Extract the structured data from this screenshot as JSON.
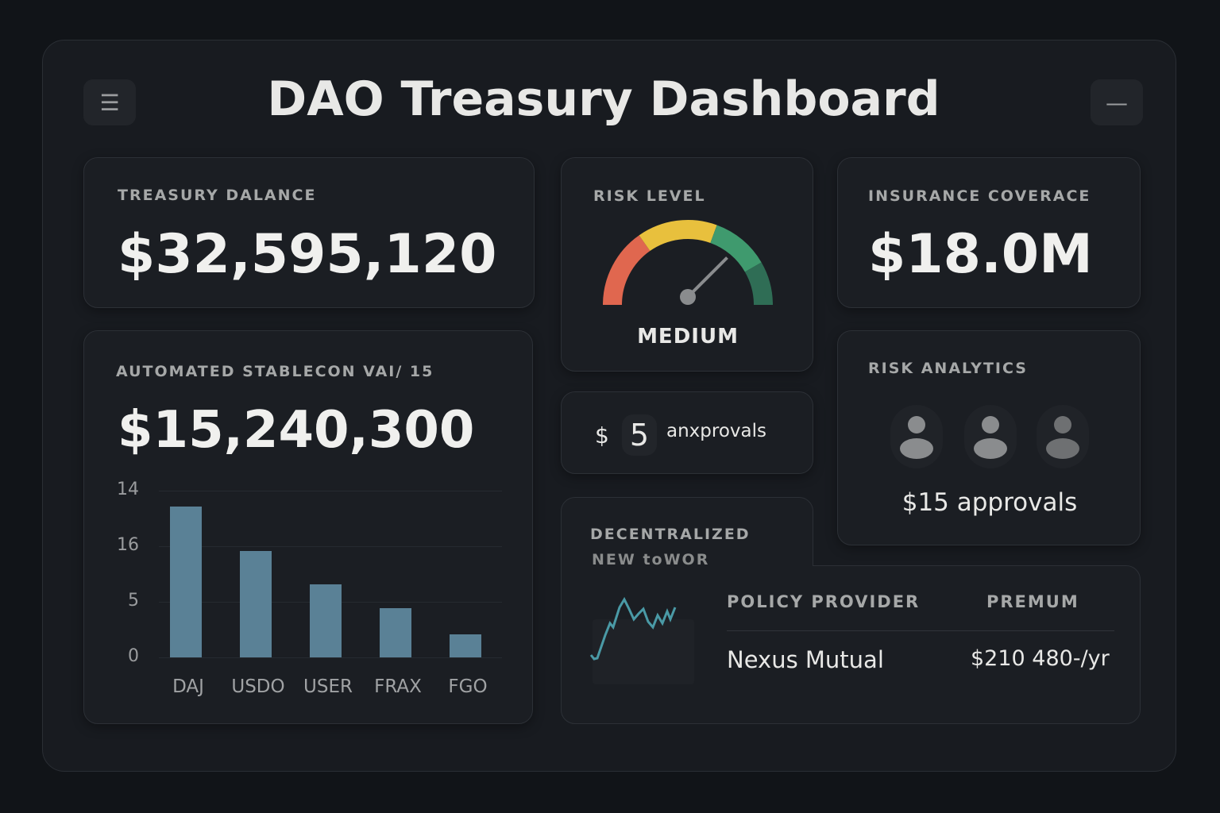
{
  "header": {
    "title": "DAO Treasury Dashboard",
    "menu_icon": "hamburger-menu-icon",
    "minimize_icon": "minimize-icon"
  },
  "treasury": {
    "label": "TREASURY DALANCE",
    "value": "$32,595,120"
  },
  "risk_level": {
    "label": "RISK LEVEL",
    "value": "MEDIUM",
    "gauge_level": 0.8,
    "colors": [
      "#e0674f",
      "#e8c03d",
      "#3f9a6e",
      "#2f6d55"
    ]
  },
  "insurance": {
    "label": "INSURANCE COVERACE",
    "value": "$18.0M"
  },
  "stablecoin": {
    "label": "AUTOMATED STABLECON VAI/ 15",
    "value": "$15,240,300"
  },
  "approvals_small": {
    "prefix": "$",
    "count": "5",
    "text": "anxprovals"
  },
  "risk_analytics": {
    "label": "RISK ANALYTICS",
    "approvals": "$15 approvals",
    "avatar_icon": "user-icon"
  },
  "decentralized": {
    "label_line1": "DECENTRALIZED",
    "label_line2": "NEW toWOR",
    "table": {
      "headers": [
        "POLICY PROVIDER",
        "PREMUM"
      ],
      "rows": [
        [
          "Nexus Mutual",
          "$210 480-/yr"
        ]
      ]
    },
    "sparkline_color": "#4a9aa6"
  },
  "chart_data": {
    "type": "bar",
    "categories": [
      "DAJ",
      "USDO",
      "USER",
      "FRAX",
      "FGO"
    ],
    "values": [
      13.6,
      9.6,
      6.6,
      4.4,
      2.1
    ],
    "tick_labels": [
      "0",
      "5",
      "16",
      "14"
    ],
    "ylim": [
      0,
      15
    ],
    "grid": true,
    "bar_color": "#5a8196",
    "title": "",
    "xlabel": "",
    "ylabel": ""
  }
}
